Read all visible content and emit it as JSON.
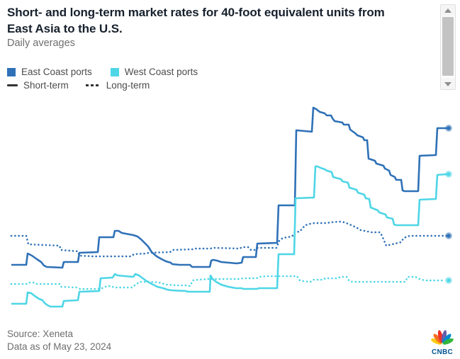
{
  "header": {
    "title_line1": "Short- and long-term market rates for 40-foot equivalent units from",
    "title_line2": "East Asia to the U.S.",
    "subtitle": "Daily averages"
  },
  "legend": {
    "ports": [
      {
        "label": "East Coast ports",
        "color": "#2f71b7"
      },
      {
        "label": "West Coast ports",
        "color": "#4ed6e6"
      }
    ],
    "styles": [
      {
        "label": "Short-term",
        "style": "solid"
      },
      {
        "label": "Long-term",
        "style": "dashed"
      }
    ]
  },
  "footer": {
    "source": "Source: Xeneta",
    "as_of": "Data as of May 23, 2024"
  },
  "brand": {
    "logo_text": "CNBC"
  },
  "chart_data": {
    "type": "line",
    "title": "Short- and long-term market rates for 40-foot equivalent units from East Asia to the U.S.",
    "subtitle": "Daily averages",
    "axes_visible": false,
    "gridlines": false,
    "legend_position": "top-left",
    "note": "No axis tick labels or value labels are rendered in the screenshot. Series are recorded as pixel-space polylines [x,y] in the 649x507 image (y increases downward; higher rate = smaller y). Each line ends with a circular marker.",
    "series": [
      {
        "id": "east-long",
        "name": "East Coast ports - Long-term",
        "color": "#2f71b7",
        "dash": "dotted",
        "points": [
          [
            16,
            333
          ],
          [
            37,
            333
          ],
          [
            40,
            345
          ],
          [
            84,
            347
          ],
          [
            86,
            353
          ],
          [
            110,
            355
          ],
          [
            112,
            361
          ],
          [
            130,
            362
          ],
          [
            185,
            362
          ],
          [
            189,
            359
          ],
          [
            206,
            358
          ],
          [
            210,
            357
          ],
          [
            240,
            356
          ],
          [
            244,
            353
          ],
          [
            272,
            352
          ],
          [
            276,
            351
          ],
          [
            297,
            351
          ],
          [
            302,
            350
          ],
          [
            338,
            351
          ],
          [
            342,
            349
          ],
          [
            350,
            349
          ],
          [
            354,
            353
          ],
          [
            359,
            353
          ],
          [
            363,
            350
          ],
          [
            390,
            350
          ],
          [
            394,
            340
          ],
          [
            399,
            336
          ],
          [
            412,
            334
          ],
          [
            416,
            328
          ],
          [
            423,
            327
          ],
          [
            427,
            322
          ],
          [
            431,
            318
          ],
          [
            438,
            316
          ],
          [
            444,
            315
          ],
          [
            462,
            315
          ],
          [
            466,
            314
          ],
          [
            479,
            313
          ],
          [
            486,
            314
          ],
          [
            491,
            316
          ],
          [
            498,
            319
          ],
          [
            504,
            322
          ],
          [
            509,
            325
          ],
          [
            519,
            327
          ],
          [
            524,
            328
          ],
          [
            536,
            328
          ],
          [
            539,
            333
          ],
          [
            542,
            340
          ],
          [
            545,
            347
          ],
          [
            549,
            346
          ],
          [
            566,
            342
          ],
          [
            569,
            337
          ],
          [
            574,
            334
          ],
          [
            579,
            333
          ],
          [
            631,
            333
          ]
        ],
        "marker": [
          633,
          333
        ]
      },
      {
        "id": "west-long",
        "name": "West Coast ports - Long-term",
        "color": "#4ed6e6",
        "dash": "dotted",
        "points": [
          [
            16,
            401
          ],
          [
            38,
            401
          ],
          [
            41,
            399
          ],
          [
            47,
            399
          ],
          [
            50,
            401
          ],
          [
            84,
            401
          ],
          [
            86,
            405
          ],
          [
            108,
            406
          ],
          [
            112,
            408
          ],
          [
            140,
            408
          ],
          [
            144,
            407
          ],
          [
            151,
            404
          ],
          [
            157,
            404
          ],
          [
            161,
            406
          ],
          [
            186,
            406
          ],
          [
            190,
            403
          ],
          [
            197,
            398
          ],
          [
            212,
            398
          ],
          [
            224,
            399
          ],
          [
            235,
            402
          ],
          [
            248,
            403
          ],
          [
            262,
            403
          ],
          [
            268,
            404
          ],
          [
            272,
            396
          ],
          [
            280,
            395
          ],
          [
            295,
            394
          ],
          [
            338,
            394
          ],
          [
            343,
            393
          ],
          [
            362,
            393
          ],
          [
            366,
            391
          ],
          [
            376,
            390
          ],
          [
            419,
            390
          ],
          [
            423,
            396
          ],
          [
            428,
            397
          ],
          [
            438,
            398
          ],
          [
            442,
            395
          ],
          [
            456,
            395
          ],
          [
            459,
            393
          ],
          [
            477,
            393
          ],
          [
            480,
            391
          ],
          [
            489,
            391
          ],
          [
            493,
            397
          ],
          [
            497,
            398
          ],
          [
            572,
            398
          ],
          [
            575,
            391
          ],
          [
            586,
            391
          ],
          [
            590,
            393
          ],
          [
            594,
            395
          ],
          [
            601,
            396
          ],
          [
            628,
            396
          ]
        ],
        "marker": [
          633,
          396
        ]
      },
      {
        "id": "east-short",
        "name": "East Coast ports - Short-term",
        "color": "#2f71b7",
        "dash": "solid",
        "points": [
          [
            16,
            374
          ],
          [
            37,
            374
          ],
          [
            39,
            358
          ],
          [
            45,
            361
          ],
          [
            52,
            366
          ],
          [
            58,
            370
          ],
          [
            62,
            375
          ],
          [
            66,
            377
          ],
          [
            88,
            378
          ],
          [
            90,
            370
          ],
          [
            110,
            370
          ],
          [
            112,
            357
          ],
          [
            138,
            356
          ],
          [
            140,
            335
          ],
          [
            160,
            335
          ],
          [
            162,
            326
          ],
          [
            167,
            326
          ],
          [
            172,
            329
          ],
          [
            188,
            332
          ],
          [
            194,
            334
          ],
          [
            199,
            338
          ],
          [
            204,
            343
          ],
          [
            209,
            348
          ],
          [
            214,
            356
          ],
          [
            221,
            362
          ],
          [
            228,
            366
          ],
          [
            234,
            369
          ],
          [
            241,
            371
          ],
          [
            243,
            373
          ],
          [
            253,
            374
          ],
          [
            268,
            374
          ],
          [
            271,
            377
          ],
          [
            296,
            377
          ],
          [
            298,
            368
          ],
          [
            301,
            367
          ],
          [
            306,
            368
          ],
          [
            312,
            370
          ],
          [
            334,
            372
          ],
          [
            341,
            371
          ],
          [
            343,
            363
          ],
          [
            361,
            363
          ],
          [
            363,
            344
          ],
          [
            391,
            343
          ],
          [
            393,
            290
          ],
          [
            416,
            290
          ],
          [
            418,
            184
          ],
          [
            440,
            186
          ],
          [
            442,
            152
          ],
          [
            446,
            154
          ],
          [
            451,
            158
          ],
          [
            458,
            160
          ],
          [
            461,
            163
          ],
          [
            467,
            163
          ],
          [
            469,
            167
          ],
          [
            472,
            171
          ],
          [
            483,
            173
          ],
          [
            485,
            176
          ],
          [
            492,
            176
          ],
          [
            494,
            183
          ],
          [
            501,
            188
          ],
          [
            504,
            191
          ],
          [
            512,
            194
          ],
          [
            514,
            198
          ],
          [
            518,
            198
          ],
          [
            520,
            224
          ],
          [
            529,
            227
          ],
          [
            531,
            231
          ],
          [
            541,
            234
          ],
          [
            543,
            238
          ],
          [
            549,
            241
          ],
          [
            551,
            247
          ],
          [
            557,
            250
          ],
          [
            559,
            254
          ],
          [
            566,
            254
          ],
          [
            568,
            269
          ],
          [
            571,
            270
          ],
          [
            590,
            270
          ],
          [
            592,
            220
          ],
          [
            615,
            219
          ],
          [
            617,
            181
          ],
          [
            631,
            181
          ]
        ],
        "marker": [
          633,
          181
        ]
      },
      {
        "id": "west-short",
        "name": "West Coast ports - Short-term",
        "color": "#4ed6e6",
        "dash": "solid",
        "points": [
          [
            16,
            429
          ],
          [
            37,
            429
          ],
          [
            39,
            413
          ],
          [
            44,
            414
          ],
          [
            49,
            418
          ],
          [
            55,
            422
          ],
          [
            60,
            424
          ],
          [
            63,
            428
          ],
          [
            67,
            431
          ],
          [
            71,
            433
          ],
          [
            88,
            433
          ],
          [
            90,
            425
          ],
          [
            110,
            424
          ],
          [
            112,
            412
          ],
          [
            140,
            411
          ],
          [
            142,
            393
          ],
          [
            159,
            392
          ],
          [
            162,
            387
          ],
          [
            166,
            389
          ],
          [
            188,
            391
          ],
          [
            191,
            387
          ],
          [
            196,
            389
          ],
          [
            200,
            392
          ],
          [
            207,
            397
          ],
          [
            214,
            401
          ],
          [
            222,
            405
          ],
          [
            230,
            407
          ],
          [
            236,
            409
          ],
          [
            242,
            410
          ],
          [
            262,
            411
          ],
          [
            265,
            412
          ],
          [
            296,
            412
          ],
          [
            297,
            389
          ],
          [
            300,
            394
          ],
          [
            305,
            398
          ],
          [
            312,
            402
          ],
          [
            322,
            405
          ],
          [
            333,
            407
          ],
          [
            341,
            407
          ],
          [
            343,
            408
          ],
          [
            363,
            408
          ],
          [
            365,
            407
          ],
          [
            391,
            407
          ],
          [
            393,
            359
          ],
          [
            415,
            359
          ],
          [
            417,
            280
          ],
          [
            443,
            279
          ],
          [
            445,
            235
          ],
          [
            448,
            235
          ],
          [
            452,
            237
          ],
          [
            458,
            239
          ],
          [
            461,
            241
          ],
          [
            468,
            243
          ],
          [
            470,
            250
          ],
          [
            481,
            253
          ],
          [
            483,
            256
          ],
          [
            491,
            258
          ],
          [
            493,
            265
          ],
          [
            503,
            268
          ],
          [
            505,
            272
          ],
          [
            514,
            275
          ],
          [
            516,
            280
          ],
          [
            521,
            281
          ],
          [
            523,
            293
          ],
          [
            533,
            297
          ],
          [
            535,
            300
          ],
          [
            544,
            303
          ],
          [
            546,
            307
          ],
          [
            554,
            309
          ],
          [
            556,
            317
          ],
          [
            559,
            318
          ],
          [
            590,
            318
          ],
          [
            592,
            282
          ],
          [
            615,
            281
          ],
          [
            617,
            247
          ],
          [
            631,
            246
          ]
        ],
        "marker": [
          633,
          246
        ]
      }
    ]
  }
}
